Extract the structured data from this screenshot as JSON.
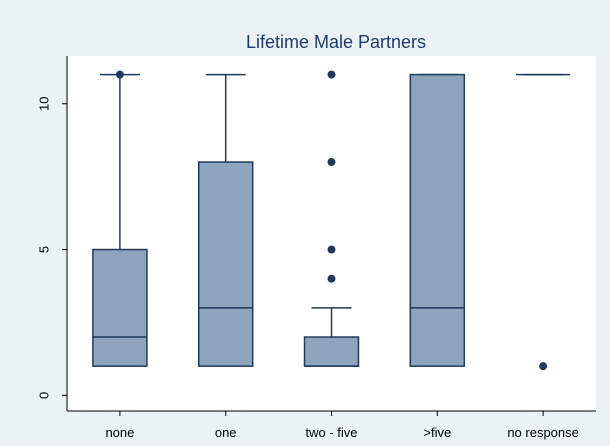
{
  "chart_data": {
    "type": "box",
    "title": "Lifetime Male Partners",
    "xlabel": "",
    "ylabel": "",
    "ylim": [
      -0.4,
      11.5
    ],
    "yticks": [
      0,
      5,
      10
    ],
    "grid": false,
    "colors": {
      "background": "#eaf2f3",
      "plot_area": "#ffffff",
      "box_fill": "#8ea4bd",
      "line": "#1e3a5c",
      "title": "#1e3a73"
    },
    "categories": [
      "none",
      "one",
      "two - five",
      ">five",
      "no response"
    ],
    "boxes": [
      {
        "category": "none",
        "whisker_low": 1,
        "q1": 1,
        "median": 2,
        "q3": 5,
        "whisker_high": 11,
        "outliers": [
          11
        ]
      },
      {
        "category": "one",
        "whisker_low": 1,
        "q1": 1,
        "median": 3,
        "q3": 8,
        "whisker_high": 11,
        "outliers": []
      },
      {
        "category": "two - five",
        "whisker_low": 1,
        "q1": 1,
        "median": 1,
        "q3": 2,
        "whisker_high": 3,
        "outliers": [
          4,
          5,
          8,
          11
        ]
      },
      {
        "category": ">five",
        "whisker_low": 1,
        "q1": 1,
        "median": 3,
        "q3": 11,
        "whisker_high": 11,
        "outliers": []
      },
      {
        "category": "no response",
        "whisker_low": 11,
        "q1": 11,
        "median": 11,
        "q3": 11,
        "whisker_high": 11,
        "outliers": [
          1
        ]
      }
    ]
  }
}
